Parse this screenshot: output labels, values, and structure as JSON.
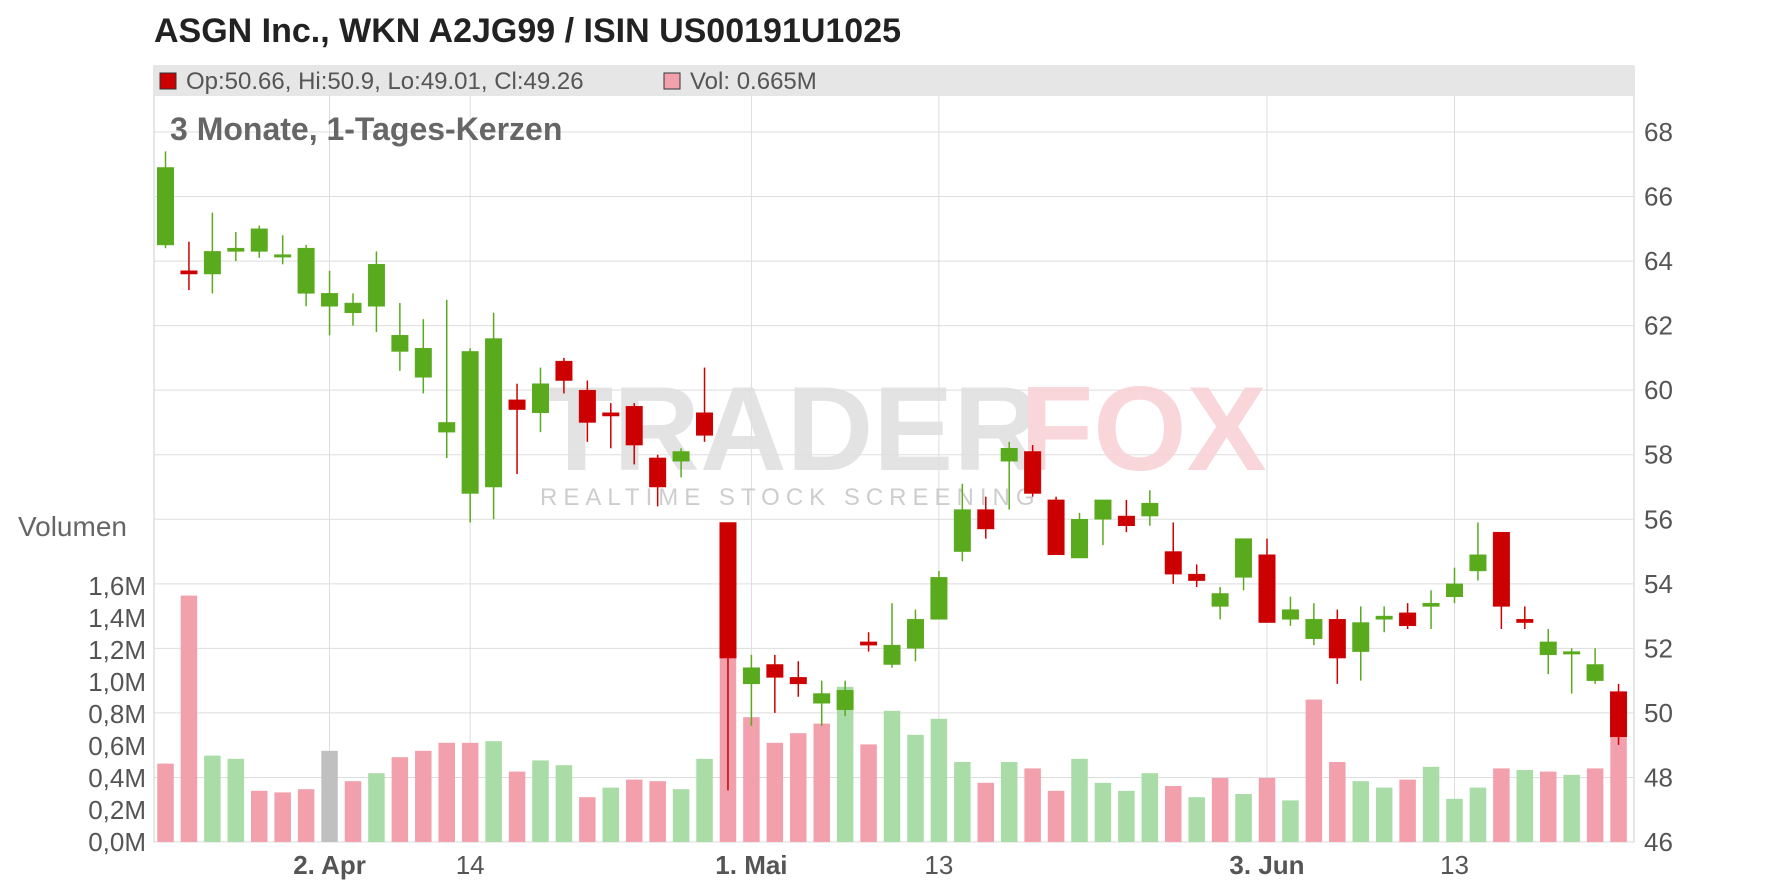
{
  "title": "ASGN Inc., WKN A2JG99 / ISIN US00191U1025",
  "info_bar": {
    "ohlc_text": "Op:50.66, Hi:50.9, Lo:49.01, Cl:49.26",
    "vol_text": "Vol: 0.665M",
    "ohlc_color": "#cc0000",
    "vol_color": "#f2a0ac"
  },
  "subtitle": "3 Monate, 1-Tages-Kerzen",
  "volume_label": "Volumen",
  "watermark": {
    "main_left": "TRADER",
    "main_right": "FOX",
    "sub": "REALTIME STOCK SCREENING"
  },
  "colors": {
    "up": "#5aaa1e",
    "down": "#cc0000",
    "vol_up": "#a9dca6",
    "vol_down": "#f2a0ac",
    "vol_neutral": "#c0c0c0",
    "grid": "#dddddd",
    "info_bg": "#e6e6e6"
  },
  "chart_data": {
    "type": "candlestick",
    "price_axis": {
      "min": 46,
      "max": 68,
      "ticks": [
        "46",
        "48",
        "50",
        "52",
        "54",
        "56",
        "58",
        "60",
        "62",
        "64",
        "66",
        "68"
      ]
    },
    "volume_axis": {
      "min": 0,
      "max": 1.6,
      "unit": "M",
      "ticks": [
        "0,0M",
        "0,2M",
        "0,4M",
        "0,6M",
        "0,8M",
        "1,0M",
        "1,2M",
        "1,4M",
        "1,6M"
      ]
    },
    "x_labels": [
      {
        "label": "2. Apr",
        "index": 7,
        "bold": true
      },
      {
        "label": "14",
        "index": 13,
        "bold": false
      },
      {
        "label": "1. Mai",
        "index": 25,
        "bold": true
      },
      {
        "label": "13",
        "index": 33,
        "bold": false
      },
      {
        "label": "3. Jun",
        "index": 47,
        "bold": true
      },
      {
        "label": "13",
        "index": 55,
        "bold": false
      }
    ],
    "candles": [
      {
        "o": 64.5,
        "h": 67.4,
        "l": 64.4,
        "c": 66.9,
        "v": 0.49,
        "vc": "down"
      },
      {
        "o": 63.7,
        "h": 64.6,
        "l": 63.1,
        "c": 63.6,
        "v": 1.54,
        "vc": "down"
      },
      {
        "o": 63.6,
        "h": 65.5,
        "l": 63.0,
        "c": 64.3,
        "v": 0.54,
        "vc": "up"
      },
      {
        "o": 64.3,
        "h": 64.9,
        "l": 64.0,
        "c": 64.4,
        "v": 0.52,
        "vc": "up"
      },
      {
        "o": 64.3,
        "h": 65.1,
        "l": 64.1,
        "c": 65.0,
        "v": 0.32,
        "vc": "down"
      },
      {
        "o": 64.2,
        "h": 64.8,
        "l": 63.9,
        "c": 64.2,
        "v": 0.31,
        "vc": "down"
      },
      {
        "o": 63.0,
        "h": 64.5,
        "l": 62.6,
        "c": 64.4,
        "v": 0.33,
        "vc": "down"
      },
      {
        "o": 62.6,
        "h": 63.7,
        "l": 61.7,
        "c": 63.0,
        "v": 0.57,
        "vc": "neutral"
      },
      {
        "o": 62.4,
        "h": 63.0,
        "l": 62.0,
        "c": 62.7,
        "v": 0.38,
        "vc": "down"
      },
      {
        "o": 62.6,
        "h": 64.3,
        "l": 61.8,
        "c": 63.9,
        "v": 0.43,
        "vc": "up"
      },
      {
        "o": 61.2,
        "h": 62.7,
        "l": 60.6,
        "c": 61.7,
        "v": 0.53,
        "vc": "down"
      },
      {
        "o": 60.4,
        "h": 62.2,
        "l": 59.9,
        "c": 61.3,
        "v": 0.57,
        "vc": "down"
      },
      {
        "o": 58.7,
        "h": 62.8,
        "l": 57.9,
        "c": 59.0,
        "v": 0.62,
        "vc": "down"
      },
      {
        "o": 56.8,
        "h": 61.3,
        "l": 55.9,
        "c": 61.2,
        "v": 0.62,
        "vc": "down"
      },
      {
        "o": 57.0,
        "h": 62.4,
        "l": 56.0,
        "c": 61.6,
        "v": 0.63,
        "vc": "up"
      },
      {
        "o": 59.7,
        "h": 60.2,
        "l": 57.4,
        "c": 59.4,
        "v": 0.44,
        "vc": "down"
      },
      {
        "o": 59.3,
        "h": 60.7,
        "l": 58.7,
        "c": 60.2,
        "v": 0.51,
        "vc": "up"
      },
      {
        "o": 60.9,
        "h": 61.0,
        "l": 59.9,
        "c": 60.3,
        "v": 0.48,
        "vc": "up"
      },
      {
        "o": 60.0,
        "h": 60.3,
        "l": 58.4,
        "c": 59.0,
        "v": 0.28,
        "vc": "down"
      },
      {
        "o": 59.3,
        "h": 59.6,
        "l": 58.2,
        "c": 59.2,
        "v": 0.34,
        "vc": "up"
      },
      {
        "o": 59.5,
        "h": 59.6,
        "l": 57.7,
        "c": 58.3,
        "v": 0.39,
        "vc": "down"
      },
      {
        "o": 57.9,
        "h": 58.0,
        "l": 56.4,
        "c": 57.0,
        "v": 0.38,
        "vc": "down"
      },
      {
        "o": 57.8,
        "h": 58.2,
        "l": 57.3,
        "c": 58.1,
        "v": 0.33,
        "vc": "up"
      },
      {
        "o": 59.3,
        "h": 60.7,
        "l": 58.4,
        "c": 58.6,
        "v": 0.52,
        "vc": "up"
      },
      {
        "o": 55.9,
        "h": 55.9,
        "l": 47.6,
        "c": 51.7,
        "v": 1.17,
        "vc": "down"
      },
      {
        "o": 50.9,
        "h": 51.8,
        "l": 49.6,
        "c": 51.4,
        "v": 0.78,
        "vc": "down"
      },
      {
        "o": 51.5,
        "h": 51.8,
        "l": 50.0,
        "c": 51.1,
        "v": 0.62,
        "vc": "down"
      },
      {
        "o": 51.1,
        "h": 51.6,
        "l": 50.5,
        "c": 50.9,
        "v": 0.68,
        "vc": "down"
      },
      {
        "o": 50.3,
        "h": 51.0,
        "l": 49.6,
        "c": 50.6,
        "v": 0.74,
        "vc": "down"
      },
      {
        "o": 50.1,
        "h": 51.0,
        "l": 49.9,
        "c": 50.7,
        "v": 0.97,
        "vc": "up"
      },
      {
        "o": 52.2,
        "h": 52.5,
        "l": 51.9,
        "c": 52.1,
        "v": 0.61,
        "vc": "down"
      },
      {
        "o": 51.5,
        "h": 53.4,
        "l": 51.4,
        "c": 52.1,
        "v": 0.82,
        "vc": "up"
      },
      {
        "o": 52.0,
        "h": 53.2,
        "l": 51.6,
        "c": 52.9,
        "v": 0.67,
        "vc": "up"
      },
      {
        "o": 52.9,
        "h": 54.4,
        "l": 52.9,
        "c": 54.2,
        "v": 0.77,
        "vc": "up"
      },
      {
        "o": 55.0,
        "h": 57.1,
        "l": 54.7,
        "c": 56.3,
        "v": 0.5,
        "vc": "up"
      },
      {
        "o": 56.3,
        "h": 56.7,
        "l": 55.4,
        "c": 55.7,
        "v": 0.37,
        "vc": "down"
      },
      {
        "o": 57.8,
        "h": 58.4,
        "l": 56.3,
        "c": 58.2,
        "v": 0.5,
        "vc": "up"
      },
      {
        "o": 58.1,
        "h": 58.3,
        "l": 56.7,
        "c": 56.8,
        "v": 0.46,
        "vc": "down"
      },
      {
        "o": 56.6,
        "h": 56.7,
        "l": 54.9,
        "c": 54.9,
        "v": 0.32,
        "vc": "down"
      },
      {
        "o": 54.8,
        "h": 56.2,
        "l": 54.8,
        "c": 56.0,
        "v": 0.52,
        "vc": "up"
      },
      {
        "o": 56.0,
        "h": 56.5,
        "l": 55.2,
        "c": 56.6,
        "v": 0.37,
        "vc": "up"
      },
      {
        "o": 56.1,
        "h": 56.6,
        "l": 55.6,
        "c": 55.8,
        "v": 0.32,
        "vc": "up"
      },
      {
        "o": 56.1,
        "h": 56.9,
        "l": 55.8,
        "c": 56.5,
        "v": 0.43,
        "vc": "up"
      },
      {
        "o": 55.0,
        "h": 55.9,
        "l": 54.0,
        "c": 54.3,
        "v": 0.35,
        "vc": "down"
      },
      {
        "o": 54.3,
        "h": 54.6,
        "l": 53.9,
        "c": 54.1,
        "v": 0.28,
        "vc": "up"
      },
      {
        "o": 53.3,
        "h": 53.9,
        "l": 52.9,
        "c": 53.7,
        "v": 0.4,
        "vc": "down"
      },
      {
        "o": 54.2,
        "h": 55.4,
        "l": 53.8,
        "c": 55.4,
        "v": 0.3,
        "vc": "up"
      },
      {
        "o": 54.9,
        "h": 55.4,
        "l": 52.9,
        "c": 52.8,
        "v": 0.4,
        "vc": "down"
      },
      {
        "o": 52.9,
        "h": 53.6,
        "l": 52.7,
        "c": 53.2,
        "v": 0.26,
        "vc": "up"
      },
      {
        "o": 52.3,
        "h": 53.4,
        "l": 52.1,
        "c": 52.9,
        "v": 0.89,
        "vc": "down"
      },
      {
        "o": 52.9,
        "h": 53.2,
        "l": 50.9,
        "c": 51.7,
        "v": 0.5,
        "vc": "down"
      },
      {
        "o": 51.9,
        "h": 53.3,
        "l": 51.0,
        "c": 52.8,
        "v": 0.38,
        "vc": "up"
      },
      {
        "o": 52.9,
        "h": 53.3,
        "l": 52.5,
        "c": 53.0,
        "v": 0.34,
        "vc": "up"
      },
      {
        "o": 53.1,
        "h": 53.4,
        "l": 52.6,
        "c": 52.7,
        "v": 0.39,
        "vc": "down"
      },
      {
        "o": 53.3,
        "h": 53.8,
        "l": 52.6,
        "c": 53.4,
        "v": 0.47,
        "vc": "up"
      },
      {
        "o": 53.6,
        "h": 54.5,
        "l": 53.4,
        "c": 54.0,
        "v": 0.27,
        "vc": "up"
      },
      {
        "o": 54.4,
        "h": 55.9,
        "l": 54.1,
        "c": 54.9,
        "v": 0.34,
        "vc": "up"
      },
      {
        "o": 55.6,
        "h": 55.6,
        "l": 52.6,
        "c": 53.3,
        "v": 0.46,
        "vc": "down"
      },
      {
        "o": 52.9,
        "h": 53.3,
        "l": 52.6,
        "c": 52.8,
        "v": 0.45,
        "vc": "up"
      },
      {
        "o": 51.8,
        "h": 52.6,
        "l": 51.2,
        "c": 52.2,
        "v": 0.44,
        "vc": "down"
      },
      {
        "o": 51.9,
        "h": 52.0,
        "l": 50.6,
        "c": 51.9,
        "v": 0.42,
        "vc": "up"
      },
      {
        "o": 51.0,
        "h": 52.0,
        "l": 50.9,
        "c": 51.5,
        "v": 0.46,
        "vc": "down"
      },
      {
        "o": 50.66,
        "h": 50.9,
        "l": 49.01,
        "c": 49.26,
        "v": 0.665,
        "vc": "down"
      }
    ]
  }
}
